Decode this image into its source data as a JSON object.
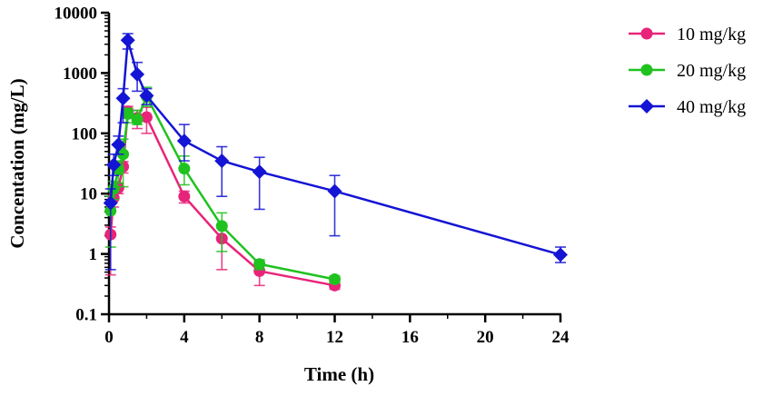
{
  "chart_data": {
    "type": "line",
    "title": "",
    "xlabel": "Time (h)",
    "ylabel": "Concentation (mg/L)",
    "xscale": "linear",
    "yscale": "log",
    "xlim": [
      0,
      24
    ],
    "ylim": [
      0.1,
      10000
    ],
    "xticks": [
      0,
      4,
      8,
      12,
      16,
      20,
      24
    ],
    "yticks": [
      {
        "value": 0.1,
        "label": "0.1"
      },
      {
        "value": 1,
        "label": "1"
      },
      {
        "value": 10,
        "label": "10"
      },
      {
        "value": 100,
        "label": "100"
      },
      {
        "value": 1000,
        "label": "1000"
      },
      {
        "value": 10000,
        "label": "10000"
      }
    ],
    "legend_position": "top-right",
    "series": [
      {
        "name": "10 mg/kg",
        "color": "#e8247a",
        "marker": "circle",
        "points": [
          {
            "x": 0.083,
            "y": 2.1,
            "lo": 0.45,
            "hi": 2.8
          },
          {
            "x": 0.25,
            "y": 8.5,
            "lo": 6,
            "hi": 11
          },
          {
            "x": 0.5,
            "y": 12.5,
            "lo": 10,
            "hi": 15
          },
          {
            "x": 0.75,
            "y": 28,
            "lo": 22,
            "hi": 34
          },
          {
            "x": 1,
            "y": 230,
            "lo": 180,
            "hi": 280
          },
          {
            "x": 1.5,
            "y": 180,
            "lo": 120,
            "hi": 240
          },
          {
            "x": 2,
            "y": 185,
            "lo": 100,
            "hi": 270
          },
          {
            "x": 4,
            "y": 9,
            "lo": 7,
            "hi": 11
          },
          {
            "x": 6,
            "y": 1.8,
            "lo": 0.55,
            "hi": 3
          },
          {
            "x": 8,
            "y": 0.52,
            "lo": 0.3,
            "hi": 0.75
          },
          {
            "x": 12,
            "y": 0.3,
            "lo": 0.26,
            "hi": 0.34
          }
        ]
      },
      {
        "name": "20 mg/kg",
        "color": "#1fc21f",
        "marker": "circle",
        "points": [
          {
            "x": 0.083,
            "y": 5.2,
            "lo": 1.3,
            "hi": 9
          },
          {
            "x": 0.25,
            "y": 12,
            "lo": 8,
            "hi": 16
          },
          {
            "x": 0.5,
            "y": 25,
            "lo": 15,
            "hi": 35
          },
          {
            "x": 0.75,
            "y": 45,
            "lo": 13,
            "hi": 80
          },
          {
            "x": 1,
            "y": 210,
            "lo": 150,
            "hi": 260
          },
          {
            "x": 1.5,
            "y": 170,
            "lo": 140,
            "hi": 240
          },
          {
            "x": 2,
            "y": 410,
            "lo": 280,
            "hi": 580
          },
          {
            "x": 4,
            "y": 26,
            "lo": 14,
            "hi": 42
          },
          {
            "x": 6,
            "y": 2.9,
            "lo": 1.1,
            "hi": 4.8
          },
          {
            "x": 8,
            "y": 0.68,
            "lo": 0.55,
            "hi": 0.8
          },
          {
            "x": 12,
            "y": 0.38,
            "lo": 0.33,
            "hi": 0.43
          }
        ]
      },
      {
        "name": "40 mg/kg",
        "color": "#1414d4",
        "marker": "diamond",
        "points": [
          {
            "x": 0.083,
            "y": 7,
            "lo": 0.55,
            "hi": 12
          },
          {
            "x": 0.25,
            "y": 30,
            "lo": 20,
            "hi": 45
          },
          {
            "x": 0.5,
            "y": 65,
            "lo": 45,
            "hi": 90
          },
          {
            "x": 0.75,
            "y": 380,
            "lo": 150,
            "hi": 550
          },
          {
            "x": 1,
            "y": 3500,
            "lo": 2500,
            "hi": 4500
          },
          {
            "x": 1.5,
            "y": 950,
            "lo": 500,
            "hi": 1500
          },
          {
            "x": 2,
            "y": 420,
            "lo": 300,
            "hi": 550
          },
          {
            "x": 4,
            "y": 75,
            "lo": 35,
            "hi": 140
          },
          {
            "x": 6,
            "y": 35,
            "lo": 9,
            "hi": 60
          },
          {
            "x": 8,
            "y": 23,
            "lo": 5.5,
            "hi": 40
          },
          {
            "x": 12,
            "y": 11,
            "lo": 2,
            "hi": 20
          },
          {
            "x": 24,
            "y": 0.97,
            "lo": 0.72,
            "hi": 1.3
          }
        ]
      }
    ]
  }
}
